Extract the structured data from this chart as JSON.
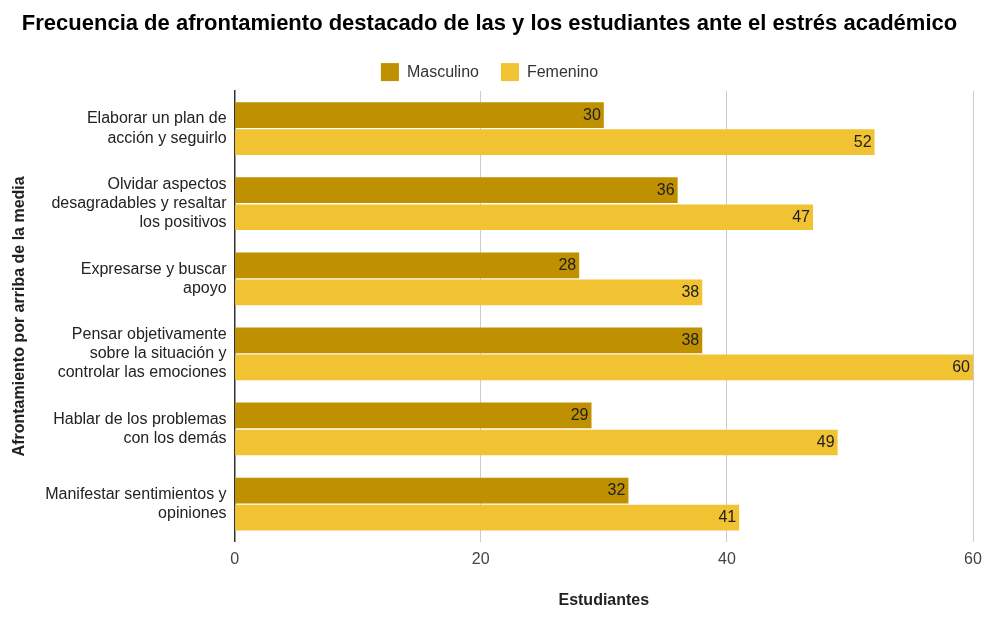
{
  "chart_data": {
    "type": "bar",
    "orientation": "horizontal",
    "title": "Frecuencia de afrontamiento destacado de las y los estudiantes ante el estrés académico",
    "xlabel": "Estudiantes",
    "ylabel": "Afrontamiento por arriba de la media",
    "categories": [
      "Elaborar un plan de acción y seguirlo",
      "Olvidar aspectos desagradables y resaltar los positivos",
      "Expresarse y buscar apoyo",
      "Pensar objetivamente sobre la situación y controlar las emociones",
      "Hablar de los problemas con los demás",
      "Manifestar sentimientos y opiniones"
    ],
    "series": [
      {
        "name": "Masculino",
        "color": "#bf9000",
        "values": [
          30,
          36,
          28,
          38,
          29,
          32
        ]
      },
      {
        "name": "Femenino",
        "color": "#f1c232",
        "values": [
          52,
          47,
          38,
          60,
          49,
          41
        ]
      }
    ],
    "xlim": [
      0,
      60
    ],
    "xticks": [
      0,
      20,
      40,
      60
    ],
    "grid": "x",
    "legend": "top",
    "data_labels": true
  }
}
